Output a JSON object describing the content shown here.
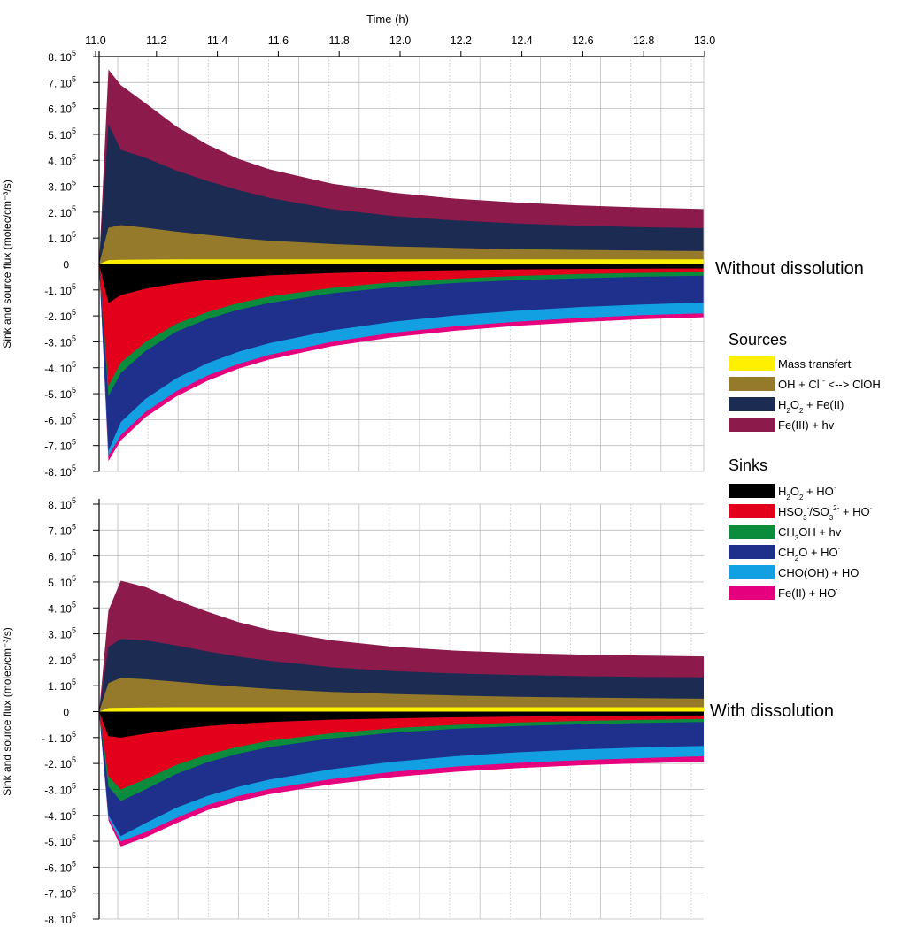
{
  "chart_data": [
    {
      "type": "area",
      "panel_label": "Without dissolution",
      "xlabel": "Time (h)",
      "ylabel": "Sink and source flux (molec/cm⁻³/s)",
      "xlim": [
        11.05,
        13.0
      ],
      "ylim": [
        -800000,
        800000
      ],
      "x_ticks": [
        "11.0",
        "11.2",
        "11.4",
        "11.6",
        "11.8",
        "12.0",
        "12.2",
        "12.4",
        "12.6",
        "12.8",
        "13.0"
      ],
      "y_ticks": [
        {
          "mantissa": "8.",
          "exp": "5",
          "sign": ""
        },
        {
          "mantissa": "7.",
          "exp": "5",
          "sign": ""
        },
        {
          "mantissa": "6.",
          "exp": "5",
          "sign": ""
        },
        {
          "mantissa": "5.",
          "exp": "5",
          "sign": ""
        },
        {
          "mantissa": "4.",
          "exp": "5",
          "sign": ""
        },
        {
          "mantissa": "3.",
          "exp": "5",
          "sign": ""
        },
        {
          "mantissa": "2.",
          "exp": "5",
          "sign": ""
        },
        {
          "mantissa": "1.",
          "exp": "5",
          "sign": ""
        },
        {
          "mantissa": "0",
          "exp": "",
          "sign": ""
        },
        {
          "mantissa": "-1.",
          "exp": "5",
          "sign": ""
        },
        {
          "mantissa": "-2.",
          "exp": "5",
          "sign": ""
        },
        {
          "mantissa": "-3.",
          "exp": "5",
          "sign": ""
        },
        {
          "mantissa": "-4.",
          "exp": "5",
          "sign": ""
        },
        {
          "mantissa": "-5.",
          "exp": "5",
          "sign": ""
        },
        {
          "mantissa": "-6.",
          "exp": "5",
          "sign": ""
        },
        {
          "mantissa": "-7.",
          "exp": "5",
          "sign": ""
        },
        {
          "mantissa": "-8.",
          "exp": "5",
          "sign": ""
        }
      ],
      "x": [
        11.05,
        11.08,
        11.12,
        11.2,
        11.3,
        11.4,
        11.5,
        11.6,
        11.8,
        12.0,
        12.2,
        12.4,
        12.6,
        12.8,
        13.0
      ],
      "sources_stacked_cumulative": {
        "Mass transfert": [
          0,
          15000,
          16000,
          17000,
          18000,
          18000,
          18000,
          18000,
          18000,
          18000,
          18000,
          18000,
          18000,
          18000,
          18000
        ],
        "OH + Cl- <-> ClOH": [
          0,
          140000,
          150000,
          140000,
          125000,
          112000,
          100000,
          90000,
          77000,
          68000,
          62000,
          57000,
          54000,
          52000,
          50000
        ],
        "H2O2 + Fe(II)": [
          0,
          540000,
          440000,
          410000,
          360000,
          320000,
          285000,
          255000,
          212000,
          185000,
          168000,
          156000,
          148000,
          142000,
          138000
        ],
        "Fe(III) + hv": [
          0,
          750000,
          690000,
          620000,
          530000,
          460000,
          405000,
          365000,
          310000,
          275000,
          252000,
          237000,
          226000,
          218000,
          212000
        ]
      },
      "sinks_stacked_cumulative": {
        "H2O2 + HO": [
          0,
          -150000,
          -120000,
          -95000,
          -75000,
          -62000,
          -52000,
          -44000,
          -35000,
          -28000,
          -24000,
          -21000,
          -19000,
          -18000,
          -17000
        ],
        "HSO3-/SO3 2- + HO": [
          0,
          -470000,
          -380000,
          -300000,
          -230000,
          -185000,
          -150000,
          -125000,
          -92000,
          -70000,
          -56000,
          -46000,
          -39000,
          -34000,
          -30000
        ],
        "CH3OH + hv": [
          0,
          -510000,
          -420000,
          -335000,
          -260000,
          -212000,
          -176000,
          -150000,
          -113000,
          -89000,
          -73000,
          -62000,
          -55000,
          -49000,
          -45000
        ],
        "CH2O + HO": [
          0,
          -720000,
          -610000,
          -520000,
          -440000,
          -382000,
          -338000,
          -305000,
          -256000,
          -222000,
          -198000,
          -180000,
          -166000,
          -156000,
          -148000
        ],
        "CHO(OH) + HO": [
          0,
          -740000,
          -660000,
          -570000,
          -490000,
          -430000,
          -385000,
          -350000,
          -300000,
          -265000,
          -240000,
          -222000,
          -208000,
          -197000,
          -190000
        ],
        "Fe(II) + HO": [
          0,
          -760000,
          -680000,
          -590000,
          -510000,
          -450000,
          -403000,
          -368000,
          -317000,
          -282000,
          -257000,
          -238000,
          -224000,
          -213000,
          -205000
        ]
      }
    },
    {
      "type": "area",
      "panel_label": "With dissolution",
      "ylabel": "Sink and source flux (molec/cm⁻³/s)",
      "xlim": [
        11.05,
        13.0
      ],
      "ylim": [
        -800000,
        800000
      ],
      "y_ticks": [
        {
          "mantissa": "8.",
          "exp": "5",
          "sign": ""
        },
        {
          "mantissa": "7.",
          "exp": "5",
          "sign": ""
        },
        {
          "mantissa": "6.",
          "exp": "5",
          "sign": ""
        },
        {
          "mantissa": "5.",
          "exp": "5",
          "sign": ""
        },
        {
          "mantissa": "4.",
          "exp": "5",
          "sign": ""
        },
        {
          "mantissa": "3.",
          "exp": "5",
          "sign": ""
        },
        {
          "mantissa": "2.",
          "exp": "5",
          "sign": ""
        },
        {
          "mantissa": "1.",
          "exp": "5",
          "sign": ""
        },
        {
          "mantissa": "0",
          "exp": "",
          "sign": ""
        },
        {
          "mantissa": "- 1.",
          "exp": "5",
          "sign": ""
        },
        {
          "mantissa": "-2.",
          "exp": "5",
          "sign": ""
        },
        {
          "mantissa": "-3.",
          "exp": "5",
          "sign": ""
        },
        {
          "mantissa": "-4.",
          "exp": "5",
          "sign": ""
        },
        {
          "mantissa": "-5.",
          "exp": "5",
          "sign": ""
        },
        {
          "mantissa": "-6.",
          "exp": "5",
          "sign": ""
        },
        {
          "mantissa": "-7.",
          "exp": "5",
          "sign": ""
        },
        {
          "mantissa": "-8.",
          "exp": "5",
          "sign": ""
        }
      ],
      "x": [
        11.05,
        11.08,
        11.12,
        11.2,
        11.3,
        11.4,
        11.5,
        11.6,
        11.8,
        12.0,
        12.2,
        12.4,
        12.6,
        12.8,
        13.0
      ],
      "sources_stacked_cumulative": {
        "Mass transfert": [
          0,
          14000,
          15000,
          16000,
          17000,
          17000,
          17000,
          17000,
          17000,
          17000,
          17000,
          17000,
          17000,
          17000,
          17000
        ],
        "OH + Cl- <-> ClOH": [
          0,
          110000,
          130000,
          125000,
          115000,
          105000,
          96000,
          88000,
          76000,
          68000,
          62000,
          57000,
          54000,
          52000,
          50000
        ],
        "H2O2 + Fe(II)": [
          0,
          250000,
          280000,
          275000,
          255000,
          232000,
          212000,
          196000,
          171000,
          156000,
          147000,
          141000,
          137000,
          134000,
          132000
        ],
        "Fe(III) + hv": [
          0,
          390000,
          505000,
          480000,
          430000,
          385000,
          345000,
          315000,
          275000,
          250000,
          235000,
          226000,
          220000,
          216000,
          213000
        ]
      },
      "sinks_stacked_cumulative": {
        "H2O2 + HO": [
          0,
          -95000,
          -100000,
          -85000,
          -68000,
          -56000,
          -47000,
          -40000,
          -31000,
          -26000,
          -22000,
          -19000,
          -17000,
          -16000,
          -15000
        ],
        "HSO3-/SO3 2- + HO": [
          0,
          -250000,
          -300000,
          -260000,
          -205000,
          -165000,
          -135000,
          -112000,
          -83000,
          -64000,
          -51000,
          -42000,
          -36000,
          -32000,
          -28000
        ],
        "CH3OH + hv": [
          0,
          -290000,
          -345000,
          -300000,
          -240000,
          -195000,
          -162000,
          -137000,
          -103000,
          -81000,
          -66000,
          -56000,
          -49000,
          -44000,
          -40000
        ],
        "CH2O + HO": [
          0,
          -400000,
          -480000,
          -430000,
          -370000,
          -325000,
          -290000,
          -262000,
          -222000,
          -193000,
          -172000,
          -157000,
          -146000,
          -138000,
          -132000
        ],
        "CHO(OH) + HO": [
          0,
          -410000,
          -500000,
          -465000,
          -410000,
          -360000,
          -325000,
          -298000,
          -260000,
          -232000,
          -212000,
          -198000,
          -187000,
          -179000,
          -172000
        ],
        "Fe(II) + HO": [
          0,
          -420000,
          -520000,
          -485000,
          -430000,
          -380000,
          -345000,
          -318000,
          -280000,
          -252000,
          -232000,
          -218000,
          -207000,
          -199000,
          -193000
        ]
      }
    }
  ],
  "legend": {
    "sources_title": "Sources",
    "sinks_title": "Sinks",
    "sources": [
      {
        "key": "Mass transfert",
        "color": "#ffef00",
        "label_parts": [
          {
            "t": "Mass transfert"
          }
        ]
      },
      {
        "key": "OH + Cl- <-> ClOH",
        "color": "#947a2a",
        "label_parts": [
          {
            "t": "OH + Cl "
          },
          {
            "t": "-",
            "sup": true
          },
          {
            "t": " <--> ClOH"
          }
        ]
      },
      {
        "key": "H2O2 + Fe(II)",
        "color": "#1c2b52",
        "label_parts": [
          {
            "t": "H"
          },
          {
            "t": "2",
            "sub": true
          },
          {
            "t": "O"
          },
          {
            "t": "2",
            "sub": true
          },
          {
            "t": "  + Fe(II)"
          }
        ]
      },
      {
        "key": "Fe(III) + hv",
        "color": "#8c1b4b",
        "label_parts": [
          {
            "t": "Fe(III) + hv"
          }
        ]
      }
    ],
    "sinks": [
      {
        "key": "H2O2 + HO",
        "color": "#000000",
        "label_parts": [
          {
            "t": "H"
          },
          {
            "t": "2",
            "sub": true
          },
          {
            "t": "O"
          },
          {
            "t": "2",
            "sub": true
          },
          {
            "t": "  + HO"
          },
          {
            "t": "·",
            "sup": true
          }
        ]
      },
      {
        "key": "HSO3-/SO3 2- + HO",
        "color": "#e3001b",
        "label_parts": [
          {
            "t": "HSO"
          },
          {
            "t": "3",
            "sub": true
          },
          {
            "t": "-",
            "sup": true
          },
          {
            "t": "/SO"
          },
          {
            "t": "3",
            "sub": true
          },
          {
            "t": "2-",
            "sup": true
          },
          {
            "t": " + HO"
          },
          {
            "t": "·",
            "sup": true
          }
        ]
      },
      {
        "key": "CH3OH + hv",
        "color": "#0a8c3c",
        "label_parts": [
          {
            "t": "CH"
          },
          {
            "t": "3",
            "sub": true
          },
          {
            "t": "OH + hv"
          }
        ]
      },
      {
        "key": "CH2O + HO",
        "color": "#1f2f8c",
        "label_parts": [
          {
            "t": "CH"
          },
          {
            "t": "2",
            "sub": true
          },
          {
            "t": "O + HO"
          },
          {
            "t": "·",
            "sup": true
          }
        ]
      },
      {
        "key": "CHO(OH) + HO",
        "color": "#13a0e2",
        "label_parts": [
          {
            "t": "CHO(OH) + HO"
          },
          {
            "t": "·",
            "sup": true
          }
        ]
      },
      {
        "key": "Fe(II) + HO",
        "color": "#e5007e",
        "label_parts": [
          {
            "t": "Fe(II) + HO"
          },
          {
            "t": "·",
            "sup": true
          }
        ]
      }
    ]
  }
}
